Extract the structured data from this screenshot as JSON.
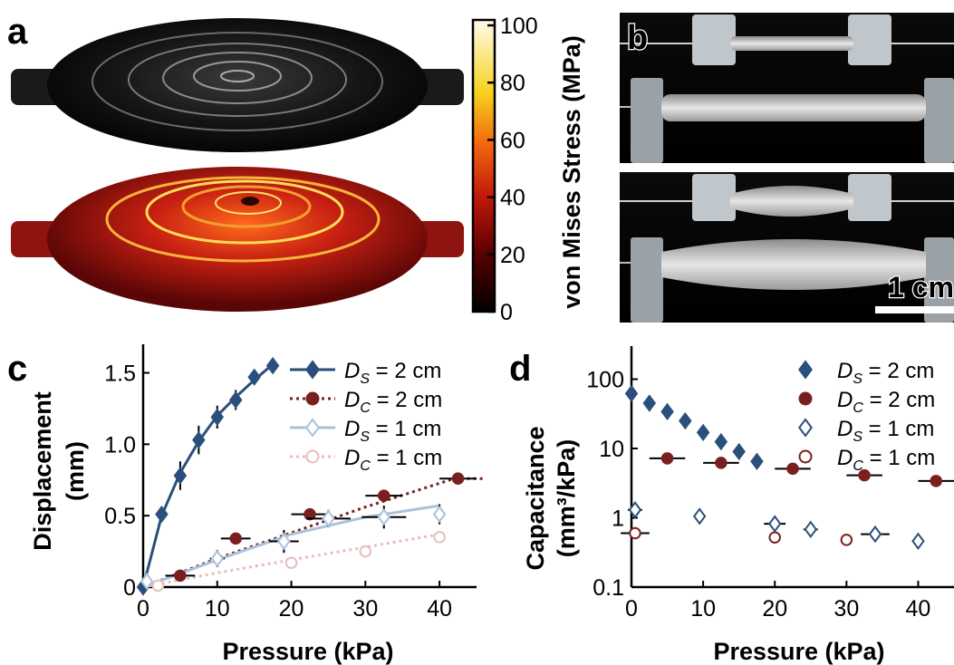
{
  "figure": {
    "panel_labels": [
      "a",
      "b",
      "c",
      "d"
    ],
    "scale_bar_label": "1 cm",
    "colorbar": {
      "label": "von Mises Stress (MPa)",
      "ticks": [
        "0",
        "20",
        "40",
        "60",
        "80",
        "100"
      ],
      "range": [
        0,
        100
      ]
    }
  },
  "chart_data": [
    {
      "panel": "c",
      "type": "scatter",
      "xlabel": "Pressure (kPa)",
      "ylabel": [
        "Displacement",
        "(mm)"
      ],
      "xlim": [
        0,
        45
      ],
      "ylim": [
        0,
        1.7
      ],
      "xticks": [
        "0",
        "10",
        "20",
        "30",
        "40"
      ],
      "yticks": [
        "0",
        "0.5",
        "1.0",
        "1.5"
      ],
      "legend_position": "top-right",
      "series": [
        {
          "name_main": "D",
          "name_sub": "S",
          "name_rest": " = 2 cm",
          "color": "#2a4f7c",
          "marker": "diamond-filled",
          "line": "solid",
          "fit": [
            [
              0,
              0
            ],
            [
              2.5,
              0.5
            ],
            [
              5,
              0.8
            ],
            [
              7.5,
              1.02
            ],
            [
              10,
              1.2
            ],
            [
              12.5,
              1.33
            ],
            [
              15,
              1.45
            ],
            [
              17.5,
              1.56
            ]
          ],
          "points": [
            [
              0,
              0
            ],
            [
              2.5,
              0.51
            ],
            [
              5,
              0.78
            ],
            [
              7.5,
              1.03
            ],
            [
              10,
              1.19
            ],
            [
              12.5,
              1.31
            ],
            [
              15,
              1.47
            ],
            [
              17.5,
              1.55
            ]
          ],
          "yerr": [
            0,
            0.03,
            0.1,
            0.1,
            0.08,
            0.07,
            0.05,
            0.03
          ]
        },
        {
          "name_main": "D",
          "name_sub": "C",
          "name_rest": " = 2 cm",
          "color": "#7a1f1f",
          "marker": "circle-filled",
          "line": "dotted",
          "fit": [
            [
              0,
              0
            ],
            [
              10,
              0.2
            ],
            [
              20,
              0.38
            ],
            [
              30,
              0.56
            ],
            [
              42,
              0.76
            ],
            [
              46,
              0.76
            ]
          ],
          "points": [
            [
              5,
              0.08
            ],
            [
              12.5,
              0.34
            ],
            [
              22.5,
              0.51
            ],
            [
              32.5,
              0.64
            ],
            [
              42.5,
              0.76
            ]
          ],
          "xerr": [
            2,
            2,
            2.5,
            2.5,
            2.5
          ]
        },
        {
          "name_main": "D",
          "name_sub": "S",
          "name_rest": " = 1 cm",
          "color": "#a9c2dc",
          "marker": "diamond-open",
          "line": "solid",
          "fit": [
            [
              0,
              0
            ],
            [
              10,
              0.19
            ],
            [
              20,
              0.37
            ],
            [
              30,
              0.49
            ],
            [
              40,
              0.57
            ]
          ],
          "points": [
            [
              0.5,
              0.04
            ],
            [
              10,
              0.2
            ],
            [
              19,
              0.32
            ],
            [
              25,
              0.48
            ],
            [
              32.5,
              0.49
            ],
            [
              40,
              0.51
            ]
          ],
          "xerr": [
            0,
            1,
            2,
            3,
            3,
            0
          ],
          "yerr": [
            0.02,
            0.06,
            0.08,
            0.06,
            0.08,
            0.07
          ]
        },
        {
          "name_main": "D",
          "name_sub": "C",
          "name_rest": " = 1 cm",
          "color": "#e8bdbd",
          "marker": "circle-open",
          "line": "dotted",
          "fit": [
            [
              0,
              0
            ],
            [
              10,
              0.1
            ],
            [
              20,
              0.19
            ],
            [
              30,
              0.28
            ],
            [
              40,
              0.37
            ]
          ],
          "points": [
            [
              2,
              0.01
            ],
            [
              20,
              0.17
            ],
            [
              30,
              0.25
            ],
            [
              40,
              0.35
            ]
          ],
          "yerr": [
            0,
            0.02,
            0.02,
            0.02
          ]
        }
      ]
    },
    {
      "panel": "d",
      "type": "scatter",
      "xlabel": "Pressure (kPa)",
      "ylabel": [
        "Capacitance",
        "(mm³/kPa)"
      ],
      "xlim": [
        0,
        45
      ],
      "ylim": [
        0.1,
        300
      ],
      "yscale": "log",
      "xticks": [
        "0",
        "10",
        "20",
        "30",
        "40"
      ],
      "yticks": [
        "0.1",
        "1",
        "10",
        "100"
      ],
      "legend_position": "top-right",
      "series": [
        {
          "name_main": "D",
          "name_sub": "S",
          "name_rest": " = 2 cm",
          "color": "#2a4f7c",
          "marker": "diamond-filled",
          "points": [
            [
              0,
              62
            ],
            [
              2.5,
              45
            ],
            [
              5,
              34
            ],
            [
              7.5,
              25
            ],
            [
              10,
              17
            ],
            [
              12.5,
              12.5
            ],
            [
              15,
              9
            ],
            [
              17.5,
              6.5
            ]
          ]
        },
        {
          "name_main": "D",
          "name_sub": "C",
          "name_rest": " = 2 cm",
          "color": "#7a1f1f",
          "marker": "circle-filled",
          "points": [
            [
              5,
              7.2
            ],
            [
              12.5,
              6.2
            ],
            [
              22.5,
              5.1
            ],
            [
              32.5,
              4.1
            ],
            [
              42.5,
              3.4
            ]
          ],
          "xerr": [
            2.5,
            2.5,
            2.5,
            2.5,
            2.5
          ]
        },
        {
          "name_main": "D",
          "name_sub": "S",
          "name_rest": " = 1 cm",
          "color": "#2a4f7c",
          "marker": "diamond-open",
          "points": [
            [
              0.5,
              1.3
            ],
            [
              9.5,
              1.05
            ],
            [
              20,
              0.82
            ],
            [
              25,
              0.68
            ],
            [
              34,
              0.58
            ],
            [
              40,
              0.46
            ]
          ],
          "xerr": [
            1,
            0.5,
            1.5,
            1,
            2,
            0.5
          ]
        },
        {
          "name_main": "D",
          "name_sub": "C",
          "name_rest": " = 1 cm",
          "color": "#7a1f1f",
          "marker": "circle-open",
          "points": [
            [
              0.5,
              0.6
            ],
            [
              20,
              0.52
            ],
            [
              30,
              0.48
            ]
          ],
          "xerr": [
            2,
            0,
            0
          ]
        }
      ]
    }
  ]
}
